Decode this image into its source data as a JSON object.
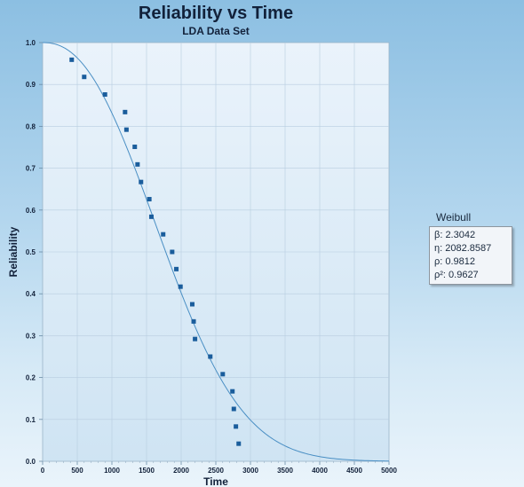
{
  "chart_data": {
    "type": "scatter",
    "title": "Reliability vs Time",
    "subtitle": "LDA Data Set",
    "xlabel": "Time",
    "ylabel": "Reliability",
    "xlim": [
      0,
      5000
    ],
    "ylim": [
      0,
      1.0
    ],
    "x_ticks": [
      0,
      500,
      1000,
      1500,
      2000,
      2500,
      3000,
      3500,
      4000,
      4500,
      5000
    ],
    "y_ticks": [
      0.0,
      0.1,
      0.2,
      0.3,
      0.4,
      0.5,
      0.6,
      0.7,
      0.8,
      0.9,
      1.0
    ],
    "grid": true,
    "legend_position": "right",
    "points": [
      {
        "x": 420,
        "y": 0.959
      },
      {
        "x": 600,
        "y": 0.918
      },
      {
        "x": 900,
        "y": 0.876
      },
      {
        "x": 1190,
        "y": 0.834
      },
      {
        "x": 1210,
        "y": 0.792
      },
      {
        "x": 1330,
        "y": 0.751
      },
      {
        "x": 1370,
        "y": 0.709
      },
      {
        "x": 1420,
        "y": 0.667
      },
      {
        "x": 1540,
        "y": 0.626
      },
      {
        "x": 1570,
        "y": 0.584
      },
      {
        "x": 1740,
        "y": 0.542
      },
      {
        "x": 1870,
        "y": 0.5
      },
      {
        "x": 1930,
        "y": 0.459
      },
      {
        "x": 1990,
        "y": 0.417
      },
      {
        "x": 2160,
        "y": 0.375
      },
      {
        "x": 2180,
        "y": 0.334
      },
      {
        "x": 2200,
        "y": 0.292
      },
      {
        "x": 2420,
        "y": 0.25
      },
      {
        "x": 2600,
        "y": 0.208
      },
      {
        "x": 2740,
        "y": 0.167
      },
      {
        "x": 2760,
        "y": 0.125
      },
      {
        "x": 2790,
        "y": 0.083
      },
      {
        "x": 2830,
        "y": 0.042
      }
    ],
    "fit": {
      "model": "Weibull",
      "beta": 2.3042,
      "eta": 2082.8587
    },
    "colors": {
      "points": "#1a5d9c",
      "curve": "#4a8fc4",
      "grid": "#b8cde0",
      "plot_top": "#eaf3fb",
      "plot_bottom": "#cfe4f3"
    }
  },
  "legend": {
    "title": "Weibull",
    "lines": [
      "β: 2.3042",
      "η: 2082.8587",
      "ρ: 0.9812",
      "ρ²: 0.9627"
    ]
  }
}
